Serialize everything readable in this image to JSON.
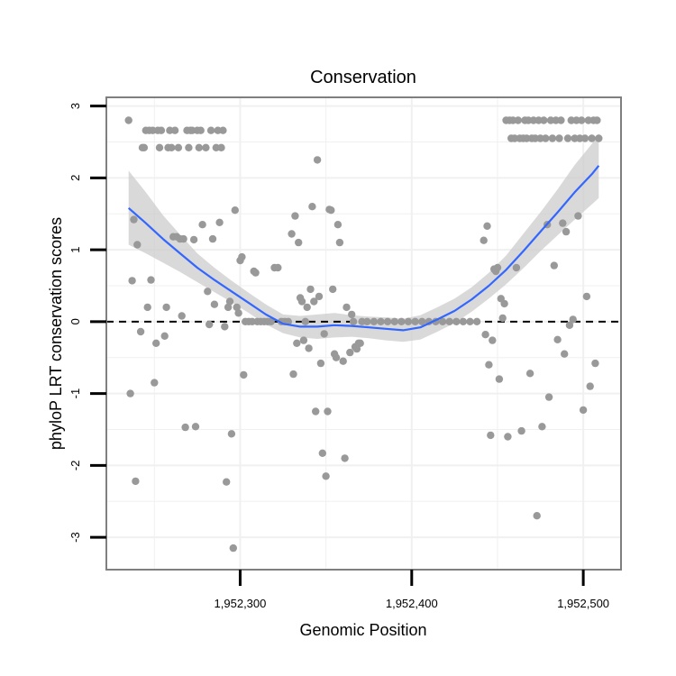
{
  "chart_data": {
    "type": "scatter",
    "title": "Conservation",
    "xlabel": "Genomic Position",
    "ylabel": "phyloP LRT conservation scores",
    "xlim": [
      1952222,
      1952522
    ],
    "ylim": [
      -3.45,
      3.12
    ],
    "x_ticks": [
      1952300,
      1952400,
      1952500
    ],
    "x_tick_labels": [
      "1,952,300",
      "1,952,400",
      "1,952,500"
    ],
    "y_ticks": [
      -3,
      -2,
      -1,
      0,
      1,
      2,
      3
    ],
    "y_tick_labels": [
      "-3",
      "-2",
      "-1",
      "0",
      "1",
      "2",
      "3"
    ],
    "reference_line": {
      "y": 0,
      "style": "dashed",
      "color": "#000000"
    },
    "grid": true,
    "colors": {
      "points": "#999999",
      "smooth_line": "#3366ff",
      "ribbon": "#cccccc",
      "grid": "#f0f0f0",
      "frame": "#7f7f7f"
    },
    "series": [
      {
        "type": "points",
        "points": [
          [
            1952235,
            2.8
          ],
          [
            1952236,
            -1.0
          ],
          [
            1952237,
            0.57
          ],
          [
            1952238,
            1.42
          ],
          [
            1952239,
            -2.22
          ],
          [
            1952240,
            1.07
          ],
          [
            1952242,
            -0.14
          ],
          [
            1952243,
            2.42
          ],
          [
            1952244,
            2.42
          ],
          [
            1952245,
            2.66
          ],
          [
            1952246,
            0.2
          ],
          [
            1952247,
            2.66
          ],
          [
            1952248,
            0.58
          ],
          [
            1952249,
            2.66
          ],
          [
            1952250,
            -0.85
          ],
          [
            1952251,
            -0.3
          ],
          [
            1952252,
            2.66
          ],
          [
            1952253,
            2.42
          ],
          [
            1952254,
            2.66
          ],
          [
            1952256,
            -0.2
          ],
          [
            1952257,
            0.2
          ],
          [
            1952258,
            2.42
          ],
          [
            1952259,
            2.66
          ],
          [
            1952260,
            2.42
          ],
          [
            1952261,
            1.18
          ],
          [
            1952262,
            2.66
          ],
          [
            1952263,
            1.18
          ],
          [
            1952264,
            2.42
          ],
          [
            1952265,
            1.15
          ],
          [
            1952266,
            0.08
          ],
          [
            1952267,
            1.15
          ],
          [
            1952268,
            -1.47
          ],
          [
            1952269,
            2.66
          ],
          [
            1952270,
            2.42
          ],
          [
            1952271,
            2.66
          ],
          [
            1952272,
            2.66
          ],
          [
            1952273,
            1.14
          ],
          [
            1952274,
            -1.46
          ],
          [
            1952275,
            2.66
          ],
          [
            1952276,
            2.42
          ],
          [
            1952277,
            2.66
          ],
          [
            1952278,
            1.35
          ],
          [
            1952280,
            2.42
          ],
          [
            1952281,
            0.42
          ],
          [
            1952282,
            -0.04
          ],
          [
            1952283,
            2.66
          ],
          [
            1952284,
            1.15
          ],
          [
            1952285,
            0.24
          ],
          [
            1952286,
            2.42
          ],
          [
            1952287,
            2.66
          ],
          [
            1952288,
            1.38
          ],
          [
            1952289,
            2.42
          ],
          [
            1952290,
            2.66
          ],
          [
            1952291,
            -0.07
          ],
          [
            1952292,
            -2.23
          ],
          [
            1952293,
            0.2
          ],
          [
            1952294,
            0.28
          ],
          [
            1952295,
            -1.56
          ],
          [
            1952296,
            -3.15
          ],
          [
            1952297,
            1.55
          ],
          [
            1952298,
            0.2
          ],
          [
            1952299,
            0.12
          ],
          [
            1952300,
            0.85
          ],
          [
            1952301,
            0.9
          ],
          [
            1952302,
            -0.74
          ],
          [
            1952303,
            0.0
          ],
          [
            1952305,
            0.0
          ],
          [
            1952307,
            0.0
          ],
          [
            1952308,
            0.7
          ],
          [
            1952309,
            0.68
          ],
          [
            1952310,
            0.0
          ],
          [
            1952312,
            0.0
          ],
          [
            1952314,
            0.0
          ],
          [
            1952316,
            0.0
          ],
          [
            1952318,
            0.0
          ],
          [
            1952320,
            0.75
          ],
          [
            1952322,
            0.75
          ],
          [
            1952324,
            0.0
          ],
          [
            1952326,
            0.0
          ],
          [
            1952328,
            0.0
          ],
          [
            1952330,
            1.22
          ],
          [
            1952331,
            -0.73
          ],
          [
            1952332,
            1.47
          ],
          [
            1952333,
            -0.3
          ],
          [
            1952334,
            1.1
          ],
          [
            1952335,
            0.33
          ],
          [
            1952336,
            0.28
          ],
          [
            1952337,
            -0.26
          ],
          [
            1952338,
            0.0
          ],
          [
            1952339,
            0.2
          ],
          [
            1952340,
            -0.37
          ],
          [
            1952341,
            0.45
          ],
          [
            1952342,
            1.6
          ],
          [
            1952343,
            0.28
          ],
          [
            1952344,
            -1.25
          ],
          [
            1952345,
            2.25
          ],
          [
            1952346,
            0.35
          ],
          [
            1952347,
            -0.58
          ],
          [
            1952348,
            -1.83
          ],
          [
            1952349,
            -0.17
          ],
          [
            1952350,
            -2.15
          ],
          [
            1952351,
            -1.25
          ],
          [
            1952352,
            1.56
          ],
          [
            1952353,
            1.55
          ],
          [
            1952354,
            0.45
          ],
          [
            1952355,
            -0.45
          ],
          [
            1952356,
            -0.5
          ],
          [
            1952357,
            1.35
          ],
          [
            1952358,
            1.1
          ],
          [
            1952360,
            -0.55
          ],
          [
            1952361,
            -1.9
          ],
          [
            1952362,
            0.2
          ],
          [
            1952364,
            -0.43
          ],
          [
            1952365,
            0.1
          ],
          [
            1952366,
            0.0
          ],
          [
            1952367,
            -0.35
          ],
          [
            1952368,
            -0.38
          ],
          [
            1952369,
            -0.3
          ],
          [
            1952370,
            -0.3
          ],
          [
            1952371,
            0.0
          ],
          [
            1952374,
            0.0
          ],
          [
            1952378,
            0.0
          ],
          [
            1952382,
            0.0
          ],
          [
            1952386,
            0.0
          ],
          [
            1952390,
            0.0
          ],
          [
            1952394,
            0.0
          ],
          [
            1952398,
            0.0
          ],
          [
            1952402,
            0.0
          ],
          [
            1952406,
            0.0
          ],
          [
            1952410,
            0.0
          ],
          [
            1952414,
            0.0
          ],
          [
            1952418,
            0.0
          ],
          [
            1952422,
            0.0
          ],
          [
            1952426,
            0.0
          ],
          [
            1952430,
            0.0
          ],
          [
            1952434,
            0.0
          ],
          [
            1952438,
            0.0
          ],
          [
            1952442,
            1.13
          ],
          [
            1952443,
            -0.18
          ],
          [
            1952444,
            1.33
          ],
          [
            1952445,
            -0.6
          ],
          [
            1952446,
            -1.58
          ],
          [
            1952447,
            -0.26
          ],
          [
            1952448,
            0.73
          ],
          [
            1952449,
            0.7
          ],
          [
            1952450,
            0.75
          ],
          [
            1952451,
            -0.8
          ],
          [
            1952452,
            0.32
          ],
          [
            1952453,
            0.05
          ],
          [
            1952454,
            0.25
          ],
          [
            1952455,
            2.8
          ],
          [
            1952456,
            -1.6
          ],
          [
            1952457,
            2.8
          ],
          [
            1952458,
            2.55
          ],
          [
            1952459,
            2.8
          ],
          [
            1952460,
            2.55
          ],
          [
            1952461,
            0.75
          ],
          [
            1952462,
            2.8
          ],
          [
            1952463,
            2.55
          ],
          [
            1952464,
            -1.52
          ],
          [
            1952465,
            2.55
          ],
          [
            1952466,
            2.8
          ],
          [
            1952467,
            2.55
          ],
          [
            1952468,
            2.8
          ],
          [
            1952469,
            -0.72
          ],
          [
            1952470,
            2.55
          ],
          [
            1952471,
            2.8
          ],
          [
            1952472,
            2.55
          ],
          [
            1952473,
            -2.7
          ],
          [
            1952474,
            2.8
          ],
          [
            1952475,
            2.55
          ],
          [
            1952476,
            -1.46
          ],
          [
            1952477,
            2.8
          ],
          [
            1952478,
            2.55
          ],
          [
            1952479,
            1.35
          ],
          [
            1952480,
            -1.05
          ],
          [
            1952481,
            2.8
          ],
          [
            1952482,
            2.55
          ],
          [
            1952483,
            0.78
          ],
          [
            1952484,
            2.8
          ],
          [
            1952485,
            -0.25
          ],
          [
            1952486,
            2.55
          ],
          [
            1952487,
            2.8
          ],
          [
            1952488,
            1.37
          ],
          [
            1952489,
            -0.45
          ],
          [
            1952490,
            1.25
          ],
          [
            1952491,
            2.55
          ],
          [
            1952492,
            -0.05
          ],
          [
            1952493,
            2.8
          ],
          [
            1952494,
            0.03
          ],
          [
            1952495,
            2.55
          ],
          [
            1952496,
            2.8
          ],
          [
            1952497,
            1.47
          ],
          [
            1952498,
            2.55
          ],
          [
            1952499,
            2.8
          ],
          [
            1952500,
            -1.23
          ],
          [
            1952501,
            2.55
          ],
          [
            1952502,
            0.35
          ],
          [
            1952503,
            2.8
          ],
          [
            1952504,
            -0.9
          ],
          [
            1952505,
            2.55
          ],
          [
            1952506,
            2.8
          ],
          [
            1952507,
            -0.58
          ],
          [
            1952508,
            2.8
          ],
          [
            1952509,
            2.55
          ]
        ]
      },
      {
        "type": "smooth",
        "fit": [
          [
            1952235,
            1.58
          ],
          [
            1952245,
            1.37
          ],
          [
            1952255,
            1.15
          ],
          [
            1952265,
            0.95
          ],
          [
            1952275,
            0.75
          ],
          [
            1952285,
            0.58
          ],
          [
            1952295,
            0.42
          ],
          [
            1952305,
            0.26
          ],
          [
            1952315,
            0.1
          ],
          [
            1952325,
            -0.03
          ],
          [
            1952335,
            -0.07
          ],
          [
            1952345,
            -0.07
          ],
          [
            1952355,
            -0.05
          ],
          [
            1952365,
            -0.06
          ],
          [
            1952375,
            -0.08
          ],
          [
            1952385,
            -0.1
          ],
          [
            1952395,
            -0.12
          ],
          [
            1952405,
            -0.08
          ],
          [
            1952415,
            0.03
          ],
          [
            1952425,
            0.15
          ],
          [
            1952435,
            0.31
          ],
          [
            1952445,
            0.5
          ],
          [
            1952455,
            0.72
          ],
          [
            1952465,
            0.98
          ],
          [
            1952475,
            1.25
          ],
          [
            1952485,
            1.52
          ],
          [
            1952495,
            1.8
          ],
          [
            1952505,
            2.05
          ],
          [
            1952509,
            2.17
          ]
        ],
        "lower": [
          [
            1952235,
            1.07
          ],
          [
            1952245,
            0.95
          ],
          [
            1952255,
            0.82
          ],
          [
            1952265,
            0.69
          ],
          [
            1952275,
            0.55
          ],
          [
            1952285,
            0.41
          ],
          [
            1952295,
            0.27
          ],
          [
            1952305,
            0.12
          ],
          [
            1952315,
            -0.04
          ],
          [
            1952325,
            -0.16
          ],
          [
            1952335,
            -0.22
          ],
          [
            1952345,
            -0.24
          ],
          [
            1952355,
            -0.22
          ],
          [
            1952365,
            -0.21
          ],
          [
            1952375,
            -0.23
          ],
          [
            1952385,
            -0.26
          ],
          [
            1952395,
            -0.28
          ],
          [
            1952405,
            -0.25
          ],
          [
            1952415,
            -0.14
          ],
          [
            1952425,
            -0.02
          ],
          [
            1952435,
            0.14
          ],
          [
            1952445,
            0.32
          ],
          [
            1952455,
            0.52
          ],
          [
            1952465,
            0.74
          ],
          [
            1952475,
            0.98
          ],
          [
            1952485,
            1.2
          ],
          [
            1952495,
            1.42
          ],
          [
            1952505,
            1.63
          ],
          [
            1952509,
            1.72
          ]
        ],
        "upper": [
          [
            1952235,
            2.1
          ],
          [
            1952245,
            1.8
          ],
          [
            1952255,
            1.48
          ],
          [
            1952265,
            1.21
          ],
          [
            1952275,
            0.95
          ],
          [
            1952285,
            0.75
          ],
          [
            1952295,
            0.57
          ],
          [
            1952305,
            0.4
          ],
          [
            1952315,
            0.24
          ],
          [
            1952325,
            0.1
          ],
          [
            1952335,
            0.08
          ],
          [
            1952345,
            0.1
          ],
          [
            1952355,
            0.12
          ],
          [
            1952365,
            0.09
          ],
          [
            1952375,
            0.07
          ],
          [
            1952385,
            0.06
          ],
          [
            1952395,
            0.04
          ],
          [
            1952405,
            0.09
          ],
          [
            1952415,
            0.2
          ],
          [
            1952425,
            0.32
          ],
          [
            1952435,
            0.48
          ],
          [
            1952445,
            0.68
          ],
          [
            1952455,
            0.92
          ],
          [
            1952465,
            1.22
          ],
          [
            1952475,
            1.52
          ],
          [
            1952485,
            1.84
          ],
          [
            1952495,
            2.18
          ],
          [
            1952505,
            2.47
          ],
          [
            1952509,
            2.62
          ]
        ]
      }
    ]
  }
}
